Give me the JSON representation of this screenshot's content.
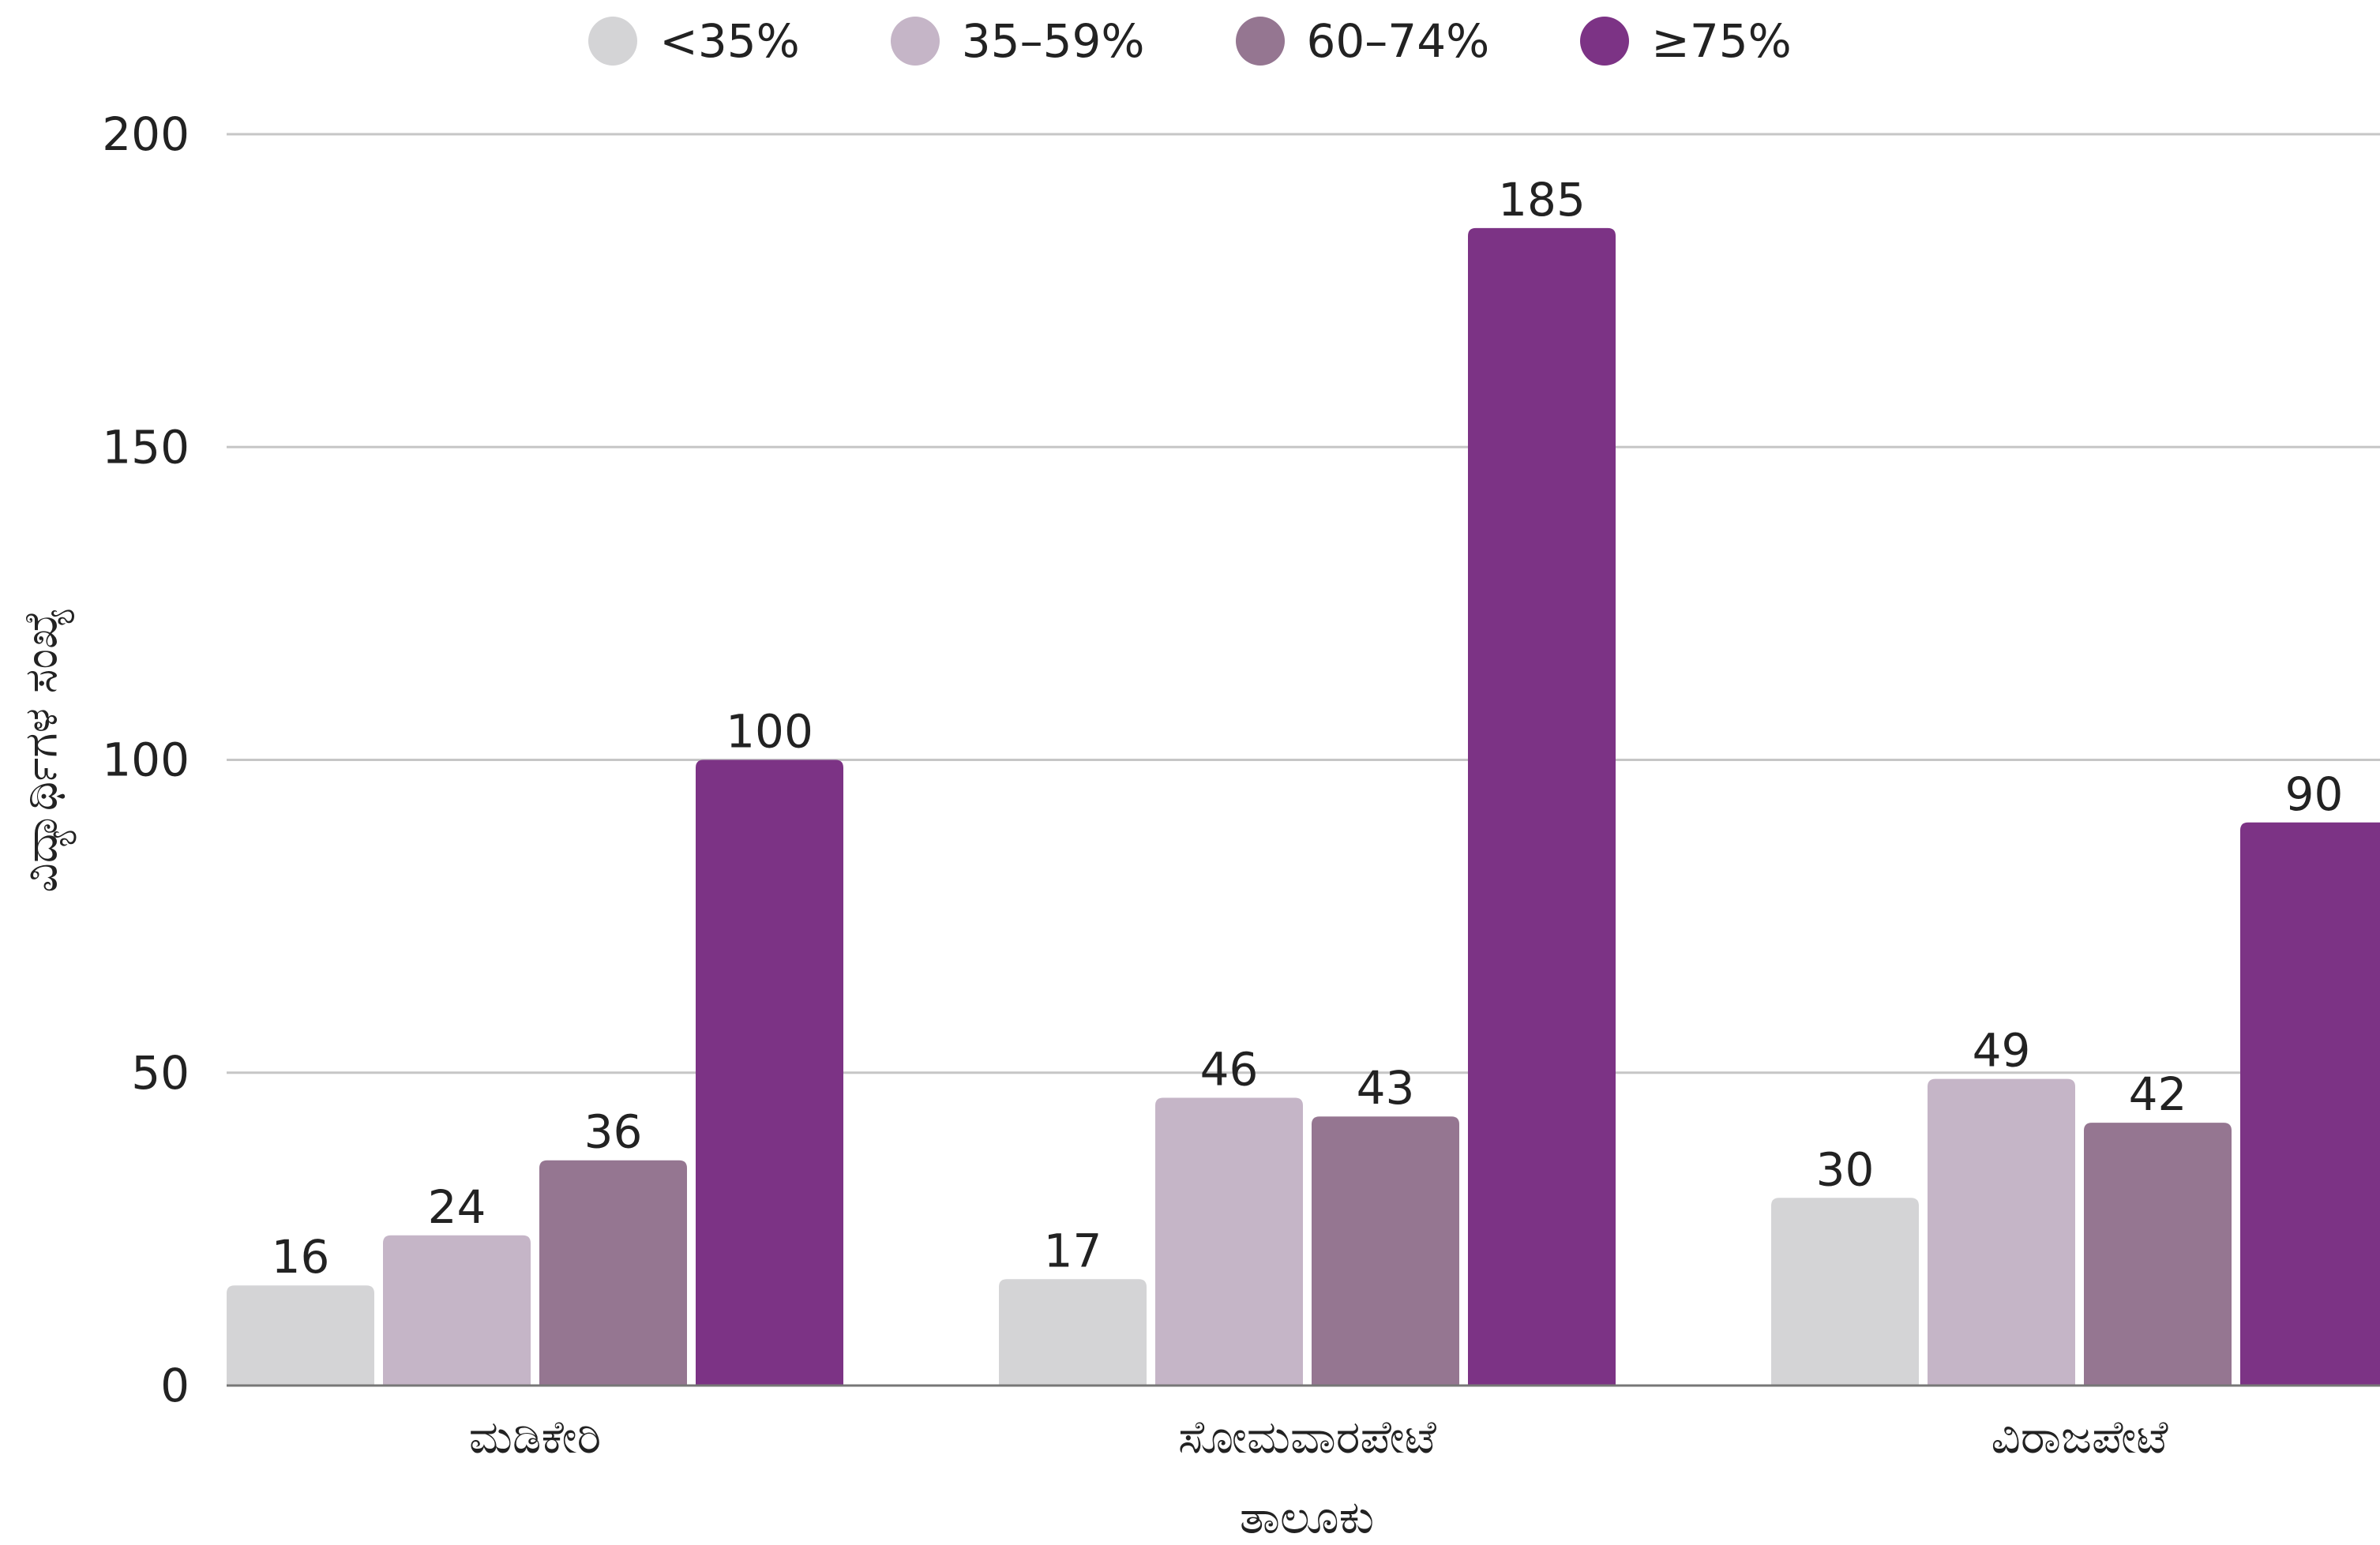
{
  "chart_data": {
    "type": "bar",
    "title": "",
    "xlabel": "ತಾಲೂಕು",
    "ylabel": "ವಿದ್ಯಾರ್ಥಿಗಳ ಸಂಖ್ಯೆ",
    "categories": [
      "ಮಡಿಕೇರಿ",
      "ಸೋಮವಾರಪೇಟೆ",
      "ವಿರಾಜಪೇಟೆ"
    ],
    "series": [
      {
        "name": "<35%",
        "color": "#D4D4D6",
        "values": [
          16,
          17,
          30
        ]
      },
      {
        "name": "35–59%",
        "color": "#C5B5C7",
        "values": [
          24,
          46,
          49
        ]
      },
      {
        "name": "60–74%",
        "color": "#957691",
        "values": [
          36,
          43,
          42
        ]
      },
      {
        "name": "≥75%",
        "color": "#7C3385",
        "values": [
          100,
          185,
          90
        ]
      }
    ],
    "ylim": [
      0,
      200
    ],
    "yticks": [
      0,
      50,
      100,
      150,
      200
    ],
    "grid": true,
    "legend_position": "top-center",
    "data_labels": true
  }
}
